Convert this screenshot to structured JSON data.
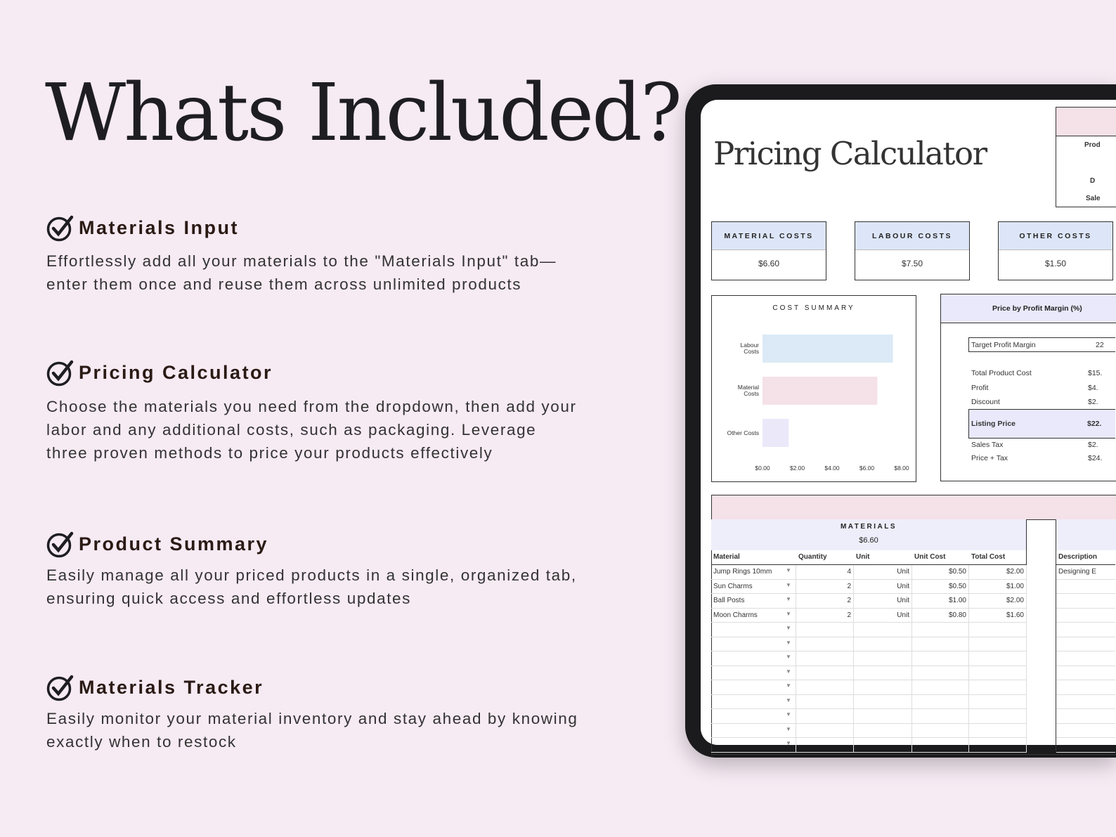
{
  "heading": "Whats Included?",
  "features": [
    {
      "title": "Materials Input",
      "body": "Effortlessly add all your materials to the \"Materials Input\" tab—enter them once and reuse them across unlimited products"
    },
    {
      "title": "Pricing Calculator",
      "body": "Choose the materials you need from the dropdown, then add your labor and any additional costs, such as packaging. Leverage three proven methods to price your products effectively"
    },
    {
      "title": "Product Summary",
      "body": "Easily manage all your priced products in a single, organized tab, ensuring quick access and effortless updates"
    },
    {
      "title": "Materials Tracker",
      "body": "Easily monitor your material inventory and stay ahead by knowing exactly when to restock"
    }
  ],
  "sheet": {
    "title": "Pricing Calculator",
    "side_table": [
      "Prod",
      "D",
      "Sale"
    ],
    "cards": [
      {
        "label": "MATERIAL COSTS",
        "value": "$6.60"
      },
      {
        "label": "LABOUR COSTS",
        "value": "$7.50"
      },
      {
        "label": "OTHER COSTS",
        "value": "$1.50"
      }
    ],
    "margin": {
      "title": "Price by Profit Margin (%)",
      "target_label": "Target Profit Margin",
      "target_value": "22",
      "rows": [
        {
          "label": "Total Product Cost",
          "value": "$15."
        },
        {
          "label": "Profit",
          "value": "$4."
        },
        {
          "label": "Discount",
          "value": "$2."
        }
      ],
      "listing": {
        "label": "Listing Price",
        "value": "$22."
      },
      "rows2": [
        {
          "label": "Sales Tax",
          "value": "$2."
        },
        {
          "label": "Price + Tax",
          "value": "$24."
        }
      ]
    },
    "materials": {
      "title": "MATERIALS",
      "total": "$6.60",
      "columns": [
        "Material",
        "Quantity",
        "Unit",
        "Unit Cost",
        "Total Cost"
      ],
      "rows": [
        [
          "Jump Rings 10mm",
          "4",
          "Unit",
          "$0.50",
          "$2.00"
        ],
        [
          "Sun Charms",
          "2",
          "Unit",
          "$0.50",
          "$1.00"
        ],
        [
          "Ball Posts",
          "2",
          "Unit",
          "$1.00",
          "$2.00"
        ],
        [
          "Moon Charms",
          "2",
          "Unit",
          "$0.80",
          "$1.60"
        ]
      ]
    },
    "labour": {
      "column": "Description",
      "rows": [
        "Designing E"
      ]
    }
  },
  "chart_data": {
    "type": "bar",
    "orientation": "horizontal",
    "title": "COST SUMMARY",
    "categories": [
      "Labour Costs",
      "Material Costs",
      "Other Costs"
    ],
    "values": [
      7.5,
      6.6,
      1.5
    ],
    "colors": [
      "#dbeaf6",
      "#f5e1e8",
      "#ebe8fa"
    ],
    "xlim": [
      0,
      8
    ],
    "xticks": [
      "$0.00",
      "$2.00",
      "$4.00",
      "$6.00",
      "$8.00"
    ],
    "grid": false
  }
}
